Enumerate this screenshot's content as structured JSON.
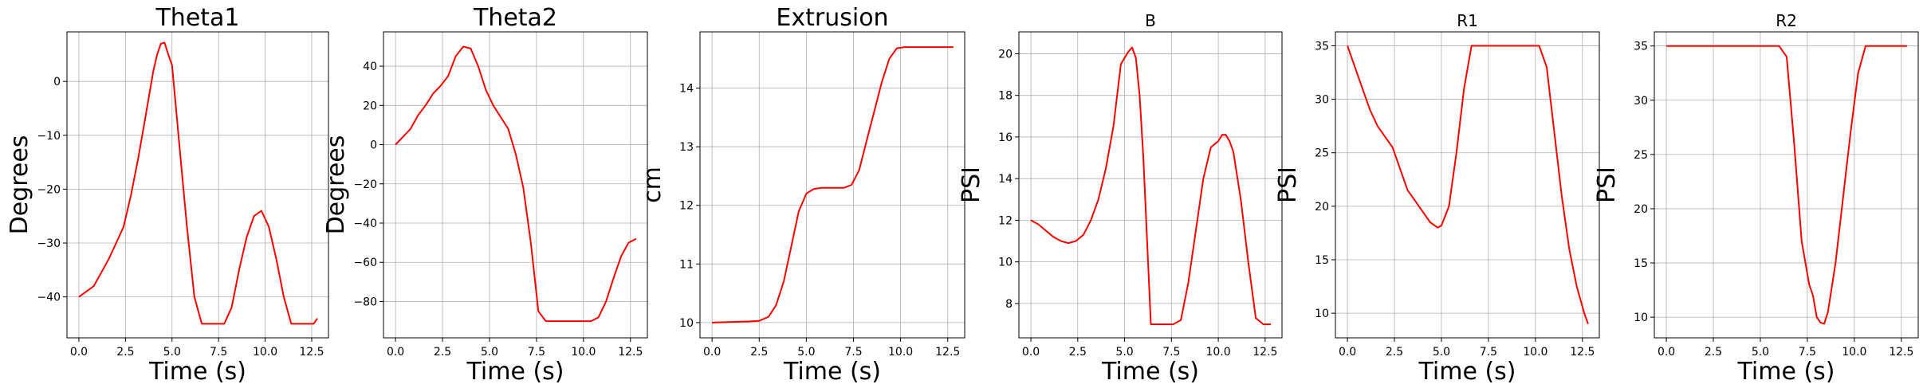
{
  "chart_data": [
    {
      "type": "line",
      "title": "Theta1",
      "xlabel": "Time (s)",
      "ylabel": "Degrees",
      "xlim": [
        -0.64,
        13.4
      ],
      "ylim": [
        -47.6,
        9.2
      ],
      "grid": true,
      "xticks": [
        0,
        2.5,
        5,
        7.5,
        10,
        12.5
      ],
      "xticklabels": [
        "0.0",
        "2.5",
        "5.0",
        "7.5",
        "10.0",
        "12.5"
      ],
      "yticks": [
        -40,
        -30,
        -20,
        -10,
        0
      ],
      "yticklabels": [
        "−40",
        "−30",
        "−20",
        "−10",
        "0"
      ],
      "color": "#ff0000",
      "series": [
        {
          "x": [
            0,
            0.4,
            0.8,
            1.2,
            1.6,
            2.0,
            2.4,
            2.8,
            3.2,
            3.6,
            4.0,
            4.2,
            4.4,
            4.6,
            4.8,
            5.0,
            5.4,
            5.8,
            6.2,
            6.6,
            7.0,
            7.4,
            7.8,
            8.2,
            8.6,
            9.0,
            9.4,
            9.8,
            10.2,
            10.6,
            11.0,
            11.4,
            11.8,
            12.2,
            12.6,
            12.8
          ],
          "y": [
            -40,
            -39,
            -38,
            -35.5,
            -33,
            -30,
            -27,
            -21,
            -14,
            -6,
            2,
            5,
            7,
            7.2,
            5,
            3,
            -12,
            -27,
            -40,
            -45,
            -45,
            -45,
            -45,
            -42,
            -35,
            -29,
            -25,
            -24,
            -27,
            -33,
            -40,
            -45,
            -45,
            -45,
            -45,
            -44
          ]
        }
      ]
    },
    {
      "type": "line",
      "title": "Theta2",
      "xlabel": "Time (s)",
      "ylabel": "Degrees",
      "xlim": [
        -0.64,
        13.4
      ],
      "ylim": [
        -98.5,
        57.5
      ],
      "grid": true,
      "xticks": [
        0,
        2.5,
        5,
        7.5,
        10,
        12.5
      ],
      "xticklabels": [
        "0.0",
        "2.5",
        "5.0",
        "7.5",
        "10.0",
        "12.5"
      ],
      "yticks": [
        -80,
        -60,
        -40,
        -20,
        0,
        20,
        40
      ],
      "yticklabels": [
        "−80",
        "−60",
        "−40",
        "−20",
        "0",
        "20",
        "40"
      ],
      "color": "#ff0000",
      "series": [
        {
          "x": [
            0,
            0.4,
            0.8,
            1.2,
            1.6,
            2.0,
            2.4,
            2.8,
            3.2,
            3.6,
            4.0,
            4.4,
            4.8,
            5.2,
            5.6,
            6.0,
            6.4,
            6.8,
            7.2,
            7.6,
            8.0,
            8.4,
            8.8,
            9.2,
            9.6,
            10.0,
            10.4,
            10.8,
            11.2,
            11.6,
            12.0,
            12.4,
            12.8
          ],
          "y": [
            0,
            4,
            8,
            15,
            20,
            26,
            30,
            35,
            45,
            50,
            49,
            40,
            28,
            20,
            14,
            8,
            -5,
            -22,
            -50,
            -85,
            -90,
            -90,
            -90,
            -90,
            -90,
            -90,
            -90,
            -88,
            -80,
            -68,
            -57,
            -50,
            -48
          ]
        }
      ]
    },
    {
      "type": "line",
      "title": "Extrusion",
      "xlabel": "Time (s)",
      "ylabel": "cm",
      "xlim": [
        -0.64,
        13.4
      ],
      "ylim": [
        9.74,
        14.96
      ],
      "grid": true,
      "xticks": [
        0,
        2.5,
        5,
        7.5,
        10,
        12.5
      ],
      "xticklabels": [
        "0.0",
        "2.5",
        "5.0",
        "7.5",
        "10.0",
        "12.5"
      ],
      "yticks": [
        10,
        11,
        12,
        13,
        14
      ],
      "yticklabels": [
        "10",
        "11",
        "12",
        "13",
        "14"
      ],
      "color": "#ff0000",
      "series": [
        {
          "x": [
            0,
            1.0,
            2.0,
            2.5,
            3.0,
            3.4,
            3.8,
            4.2,
            4.6,
            5.0,
            5.4,
            5.8,
            6.2,
            6.6,
            7.0,
            7.4,
            7.8,
            8.2,
            8.6,
            9.0,
            9.4,
            9.8,
            10.2,
            10.6,
            11.0,
            11.4,
            11.8,
            12.2,
            12.8
          ],
          "y": [
            10,
            10.01,
            10.02,
            10.03,
            10.1,
            10.3,
            10.7,
            11.3,
            11.9,
            12.2,
            12.28,
            12.3,
            12.3,
            12.3,
            12.3,
            12.35,
            12.6,
            13.1,
            13.6,
            14.1,
            14.5,
            14.68,
            14.7,
            14.7,
            14.7,
            14.7,
            14.7,
            14.7,
            14.7
          ]
        }
      ]
    },
    {
      "type": "line",
      "title": "B",
      "xlabel": "Time (s)",
      "ylabel": "PSI",
      "xlim": [
        -0.64,
        13.4
      ],
      "ylim": [
        6.35,
        21.05
      ],
      "grid": true,
      "xticks": [
        0,
        2.5,
        5,
        7.5,
        10,
        12.5
      ],
      "xticklabels": [
        "0.0",
        "2.5",
        "5.0",
        "7.5",
        "10.0",
        "12.5"
      ],
      "yticks": [
        8,
        10,
        12,
        14,
        16,
        18,
        20
      ],
      "yticklabels": [
        "8",
        "10",
        "12",
        "14",
        "16",
        "18",
        "20"
      ],
      "color": "#ff0000",
      "series": [
        {
          "x": [
            0,
            0.4,
            0.8,
            1.2,
            1.6,
            2.0,
            2.4,
            2.8,
            3.2,
            3.6,
            4.0,
            4.4,
            4.8,
            5.2,
            5.4,
            5.6,
            5.8,
            6.0,
            6.2,
            6.4,
            6.6,
            6.8,
            7.2,
            7.6,
            8.0,
            8.4,
            8.8,
            9.2,
            9.6,
            10.0,
            10.2,
            10.4,
            10.6,
            10.8,
            11.2,
            11.6,
            12.0,
            12.4,
            12.8
          ],
          "y": [
            12,
            11.8,
            11.5,
            11.2,
            11,
            10.9,
            11,
            11.3,
            12,
            13,
            14.5,
            16.5,
            19.5,
            20.1,
            20.3,
            19.8,
            18,
            15,
            11,
            7,
            7,
            7,
            7,
            7,
            7.2,
            9,
            11.5,
            14,
            15.5,
            15.8,
            16.1,
            16.1,
            15.8,
            15.3,
            13,
            10,
            7.3,
            7,
            7
          ]
        }
      ]
    },
    {
      "type": "line",
      "title": "R1",
      "xlabel": "Time (s)",
      "ylabel": "PSI",
      "xlim": [
        -0.64,
        13.4
      ],
      "ylim": [
        7.7,
        36.3
      ],
      "grid": true,
      "xticks": [
        0,
        2.5,
        5,
        7.5,
        10,
        12.5
      ],
      "xticklabels": [
        "0.0",
        "2.5",
        "5.0",
        "7.5",
        "10.0",
        "12.5"
      ],
      "yticks": [
        10,
        15,
        20,
        25,
        30,
        35
      ],
      "yticklabels": [
        "10",
        "15",
        "20",
        "25",
        "30",
        "35"
      ],
      "color": "#ff0000",
      "series": [
        {
          "x": [
            0,
            0.4,
            0.8,
            1.2,
            1.6,
            2.0,
            2.4,
            2.8,
            3.2,
            3.6,
            4.0,
            4.4,
            4.8,
            5.0,
            5.4,
            5.8,
            6.2,
            6.6,
            7.0,
            7.4,
            7.8,
            8.2,
            8.6,
            9.0,
            9.4,
            9.8,
            10.2,
            10.6,
            11.0,
            11.4,
            11.8,
            12.2,
            12.6,
            12.8
          ],
          "y": [
            35,
            33,
            31,
            29,
            27.5,
            26.5,
            25.5,
            23.5,
            21.5,
            20.5,
            19.5,
            18.5,
            18,
            18.2,
            20,
            25,
            31,
            35,
            35,
            35,
            35,
            35,
            35,
            35,
            35,
            35,
            35,
            33,
            27,
            21,
            16,
            12.5,
            10,
            9
          ]
        }
      ]
    },
    {
      "type": "line",
      "title": "R2",
      "xlabel": "Time (s)",
      "ylabel": "PSI",
      "xlim": [
        -0.64,
        13.4
      ],
      "ylim": [
        8.1,
        36.3
      ],
      "grid": true,
      "xticks": [
        0,
        2.5,
        5,
        7.5,
        10,
        12.5
      ],
      "xticklabels": [
        "0.0",
        "2.5",
        "5.0",
        "7.5",
        "10.0",
        "12.5"
      ],
      "yticks": [
        10,
        15,
        20,
        25,
        30,
        35
      ],
      "yticklabels": [
        "10",
        "15",
        "20",
        "25",
        "30",
        "35"
      ],
      "color": "#ff0000",
      "series": [
        {
          "x": [
            0,
            1.0,
            2.0,
            3.0,
            4.0,
            5.0,
            6.0,
            6.4,
            6.8,
            7.2,
            7.6,
            7.8,
            8.0,
            8.2,
            8.4,
            8.6,
            9.0,
            9.4,
            9.8,
            10.2,
            10.6,
            11.0,
            11.6,
            12.2,
            12.8
          ],
          "y": [
            35,
            35,
            35,
            35,
            35,
            35,
            35,
            34,
            26,
            17,
            13,
            12,
            10,
            9.5,
            9.4,
            10.5,
            15,
            21,
            27,
            32.5,
            35,
            35,
            35,
            35,
            35
          ]
        }
      ]
    }
  ]
}
